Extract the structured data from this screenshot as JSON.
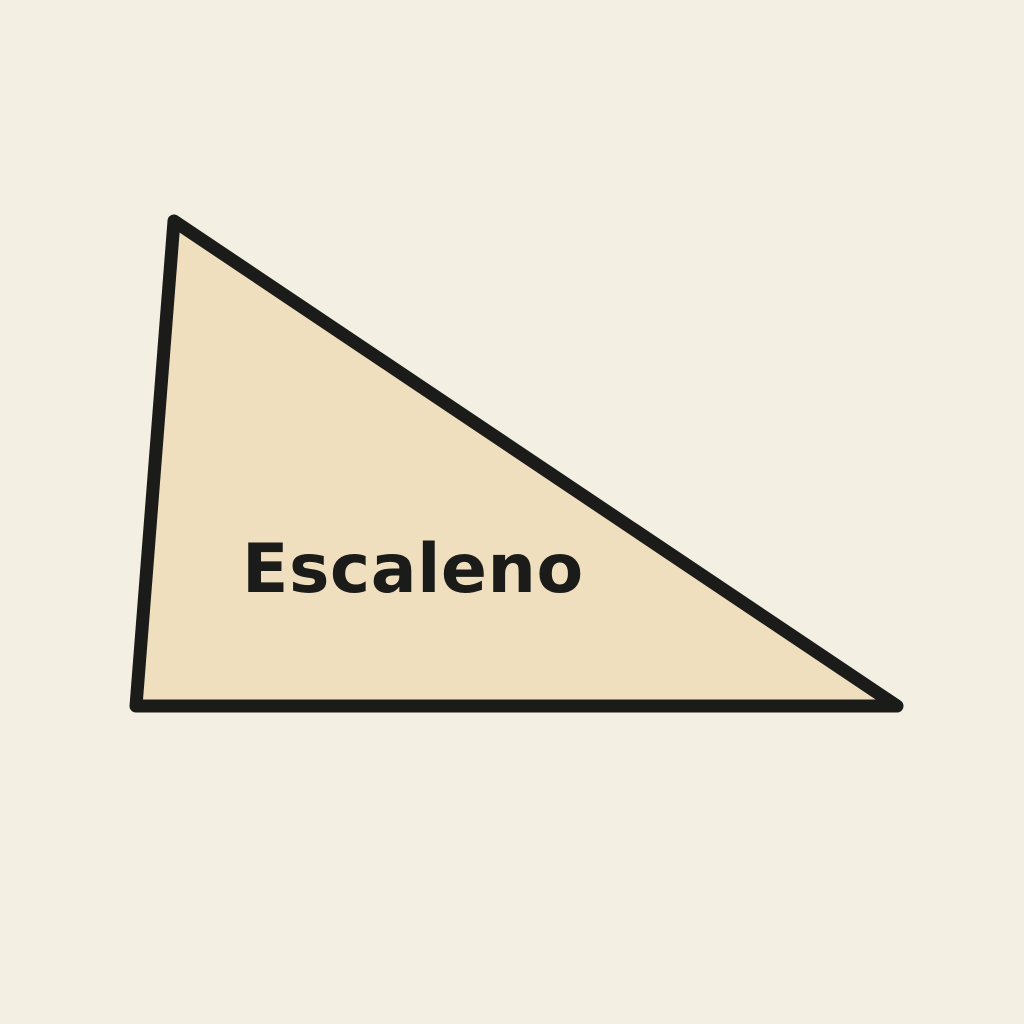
{
  "diagram": {
    "shape": "scalene-triangle",
    "label": "Escaleno",
    "colors": {
      "background": "#f3efe3",
      "fill": "#efdfbf",
      "stroke": "#1b1c19",
      "text": "#1b1c19"
    }
  }
}
